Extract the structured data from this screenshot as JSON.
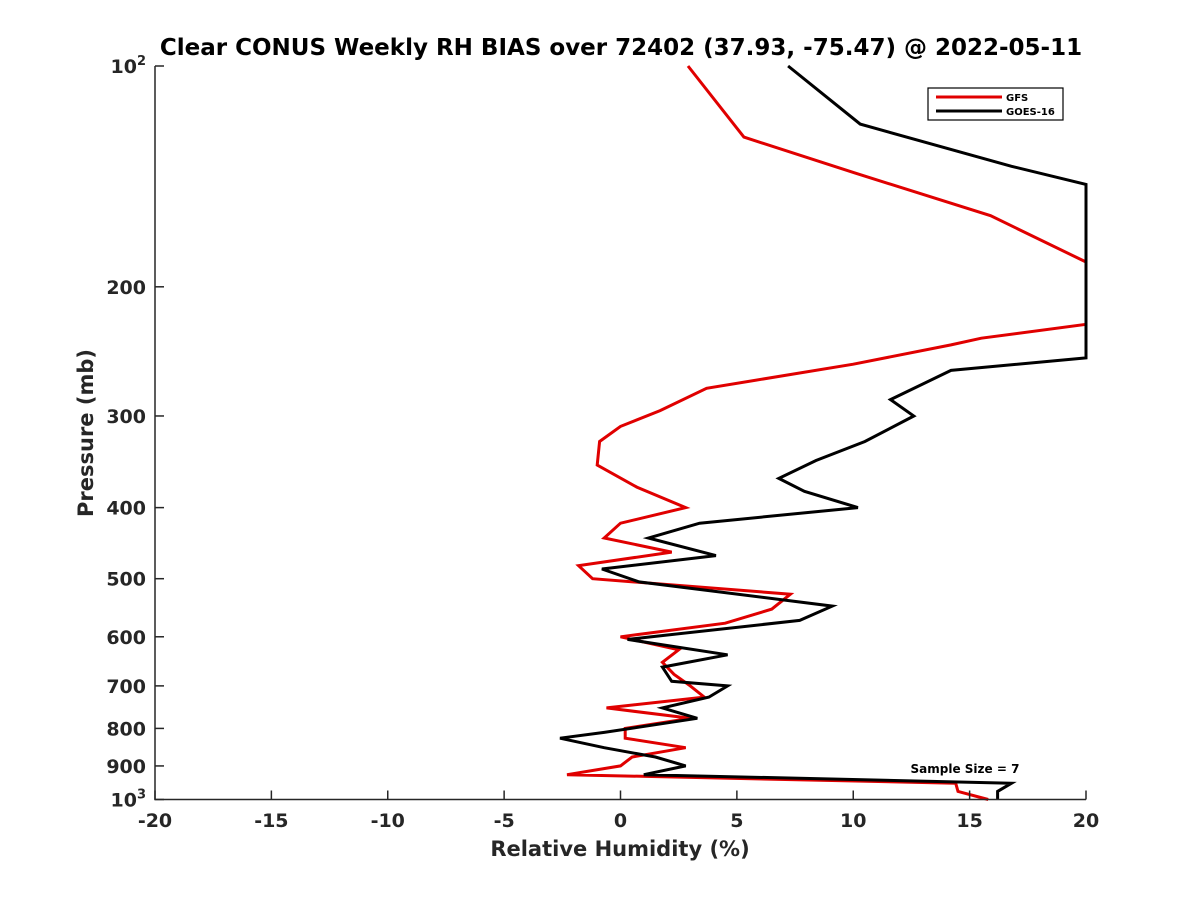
{
  "chart_data": {
    "type": "line",
    "title": "Clear CONUS Weekly RH BIAS over 72402 (37.93, -75.47) @ 2022-05-11",
    "xlabel": "Relative Humidity (%)",
    "ylabel": "Pressure (mb)",
    "xlim": [
      -20,
      20
    ],
    "ylim": [
      100,
      1000
    ],
    "yscale": "log",
    "y_reversed": true,
    "grid": false,
    "xticks": [
      -20,
      -15,
      -10,
      -5,
      0,
      5,
      10,
      15,
      20
    ],
    "xtick_labels": [
      "-20",
      "-15",
      "-10",
      "-5",
      "0",
      "5",
      "10",
      "15",
      "20"
    ],
    "yticks": [
      {
        "value": 100,
        "base": "10",
        "exp": "2"
      },
      {
        "value": 200,
        "label": "200"
      },
      {
        "value": 300,
        "label": "300"
      },
      {
        "value": 400,
        "label": "400"
      },
      {
        "value": 500,
        "label": "500"
      },
      {
        "value": 600,
        "label": "600"
      },
      {
        "value": 700,
        "label": "700"
      },
      {
        "value": 800,
        "label": "800"
      },
      {
        "value": 900,
        "label": "900"
      },
      {
        "value": 1000,
        "base": "10",
        "exp": "3"
      }
    ],
    "legend_position": "top-right",
    "series": [
      {
        "name": "GFS",
        "color": "#e00000",
        "points": [
          {
            "x": 15.8,
            "y": 1000
          },
          {
            "x": 14.5,
            "y": 975
          },
          {
            "x": 14.4,
            "y": 950
          },
          {
            "x": -2.3,
            "y": 925
          },
          {
            "x": 0.0,
            "y": 900
          },
          {
            "x": 0.5,
            "y": 875
          },
          {
            "x": 2.8,
            "y": 850
          },
          {
            "x": 0.2,
            "y": 825
          },
          {
            "x": 0.2,
            "y": 800
          },
          {
            "x": 3.0,
            "y": 775
          },
          {
            "x": -0.6,
            "y": 750
          },
          {
            "x": 3.6,
            "y": 725
          },
          {
            "x": 3.0,
            "y": 700
          },
          {
            "x": 2.3,
            "y": 675
          },
          {
            "x": 1.8,
            "y": 650
          },
          {
            "x": 2.5,
            "y": 625
          },
          {
            "x": 0.0,
            "y": 600
          },
          {
            "x": 4.5,
            "y": 575
          },
          {
            "x": 6.5,
            "y": 550
          },
          {
            "x": 7.3,
            "y": 525
          },
          {
            "x": -1.2,
            "y": 500
          },
          {
            "x": -1.8,
            "y": 480
          },
          {
            "x": 2.2,
            "y": 460
          },
          {
            "x": -0.7,
            "y": 440
          },
          {
            "x": 0.0,
            "y": 420
          },
          {
            "x": 2.8,
            "y": 400
          },
          {
            "x": 0.7,
            "y": 375
          },
          {
            "x": -1.0,
            "y": 350
          },
          {
            "x": -0.9,
            "y": 325
          },
          {
            "x": 0.0,
            "y": 310
          },
          {
            "x": 1.7,
            "y": 295
          },
          {
            "x": 3.7,
            "y": 275
          },
          {
            "x": 10.0,
            "y": 255
          },
          {
            "x": 14.2,
            "y": 240
          },
          {
            "x": 15.5,
            "y": 235
          },
          {
            "x": 20.0,
            "y": 225
          },
          {
            "x": 20.0,
            "y": 185
          },
          {
            "x": 15.9,
            "y": 160
          },
          {
            "x": 10.1,
            "y": 140
          },
          {
            "x": 5.3,
            "y": 125
          },
          {
            "x": 2.9,
            "y": 100
          }
        ]
      },
      {
        "name": "GOES-16",
        "color": "#000000",
        "points": [
          {
            "x": 16.2,
            "y": 1000
          },
          {
            "x": 16.2,
            "y": 975
          },
          {
            "x": 16.8,
            "y": 950
          },
          {
            "x": 1.0,
            "y": 925
          },
          {
            "x": 2.8,
            "y": 900
          },
          {
            "x": 1.5,
            "y": 875
          },
          {
            "x": -0.7,
            "y": 850
          },
          {
            "x": -2.6,
            "y": 825
          },
          {
            "x": -0.7,
            "y": 810
          },
          {
            "x": 3.3,
            "y": 775
          },
          {
            "x": 1.8,
            "y": 750
          },
          {
            "x": 3.8,
            "y": 725
          },
          {
            "x": 4.6,
            "y": 700
          },
          {
            "x": 2.2,
            "y": 690
          },
          {
            "x": 1.8,
            "y": 660
          },
          {
            "x": 4.6,
            "y": 635
          },
          {
            "x": 0.3,
            "y": 605
          },
          {
            "x": 7.7,
            "y": 570
          },
          {
            "x": 9.1,
            "y": 545
          },
          {
            "x": 0.8,
            "y": 505
          },
          {
            "x": -0.8,
            "y": 485
          },
          {
            "x": 4.1,
            "y": 465
          },
          {
            "x": 1.2,
            "y": 440
          },
          {
            "x": 3.4,
            "y": 420
          },
          {
            "x": 10.2,
            "y": 400
          },
          {
            "x": 7.9,
            "y": 380
          },
          {
            "x": 6.8,
            "y": 365
          },
          {
            "x": 8.4,
            "y": 345
          },
          {
            "x": 10.5,
            "y": 325
          },
          {
            "x": 12.6,
            "y": 300
          },
          {
            "x": 11.6,
            "y": 285
          },
          {
            "x": 14.2,
            "y": 260
          },
          {
            "x": 20.0,
            "y": 250
          },
          {
            "x": 20.0,
            "y": 145
          },
          {
            "x": 16.8,
            "y": 137
          },
          {
            "x": 10.3,
            "y": 120
          },
          {
            "x": 7.2,
            "y": 100
          }
        ]
      }
    ],
    "annotations": [
      {
        "text": "Sample Size = 7",
        "x": 14.8,
        "y": 920
      }
    ]
  }
}
